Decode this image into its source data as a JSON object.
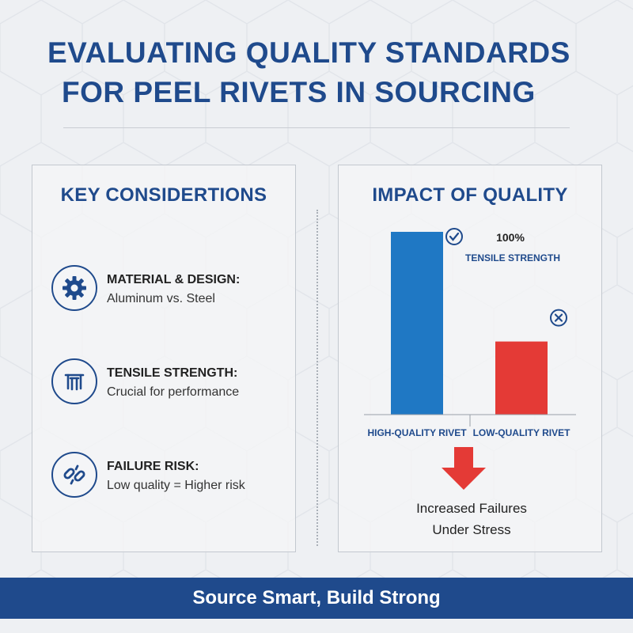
{
  "title": {
    "line1": "EVALUATING QUALITY STANDARDS",
    "line2": "FOR PEEL RIVETS IN SOURCING"
  },
  "left_panel": {
    "heading": "KEY CONSIDERTIONS",
    "items": [
      {
        "icon": "gear-icon",
        "label": "MATERIAL & DESIGN:",
        "desc": "Aluminum vs. Steel"
      },
      {
        "icon": "tensile-test-icon",
        "label": "TENSILE STRENGTH:",
        "desc": "Crucial for performance"
      },
      {
        "icon": "broken-chain-icon",
        "label": "FAILURE RISK:",
        "desc": "Low quality = Higher risk"
      }
    ]
  },
  "right_panel": {
    "heading": "IMPACT OF QUALITY",
    "note_percent": "100%",
    "note_text": "TENSILE STRENGTH",
    "failure_line1": "Increased Failures",
    "failure_line2": "Under Stress"
  },
  "chart_data": {
    "type": "bar",
    "categories": [
      "HIGH-QUALITY RIVET",
      "LOW-QUALITY RIVET"
    ],
    "values": [
      100,
      40
    ],
    "ylim": [
      0,
      100
    ],
    "colors": [
      "#1f78c4",
      "#e43a36"
    ],
    "markers": [
      "check-icon",
      "cross-icon"
    ]
  },
  "footer": {
    "text": "Source Smart, Build Strong"
  },
  "colors": {
    "brand": "#1f4a8c",
    "high_bar": "#1f78c4",
    "low_bar": "#e43a36",
    "background": "#eef0f3"
  }
}
